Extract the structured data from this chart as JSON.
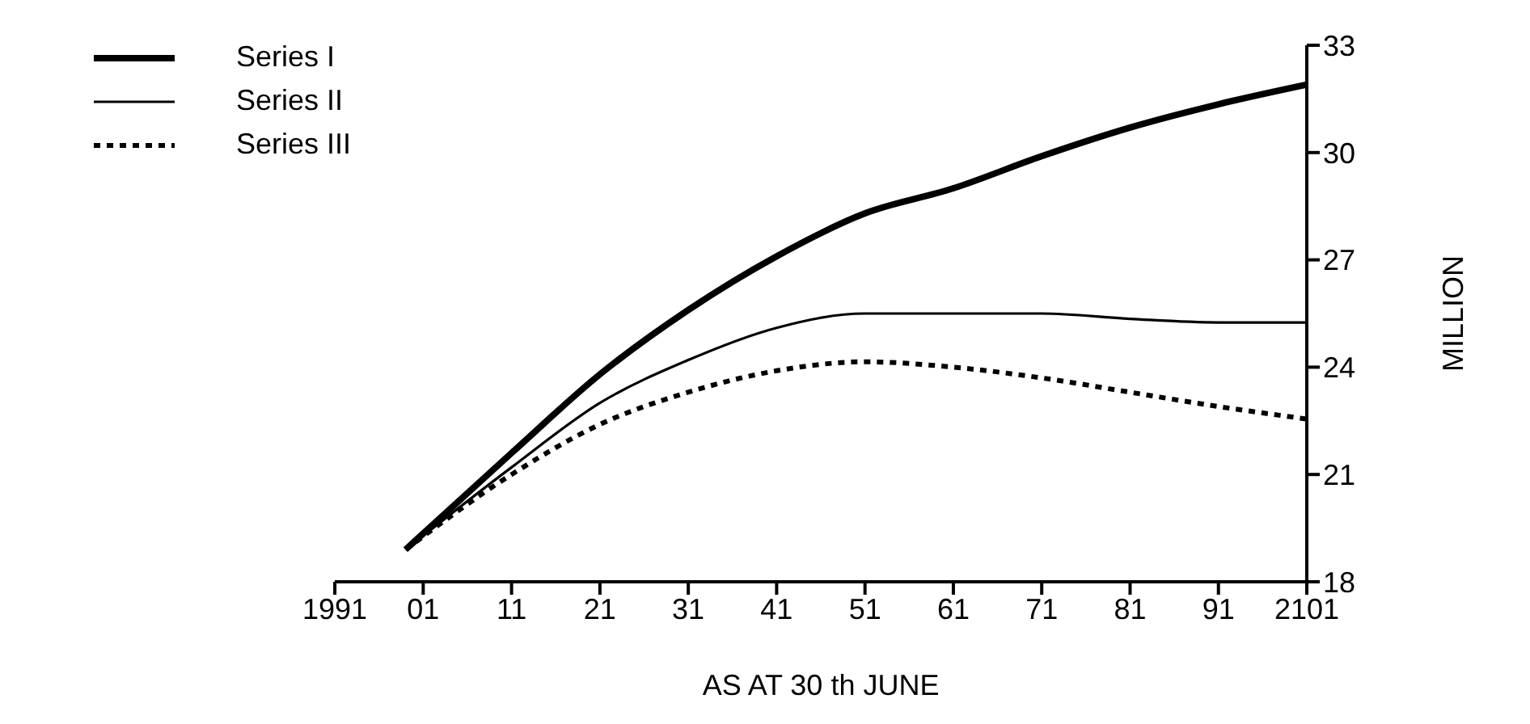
{
  "chart_data": {
    "type": "line",
    "xlabel": "AS AT 30 th JUNE",
    "ylabel": "MILLION",
    "xlim": [
      1991,
      2101
    ],
    "xticks": [
      1991,
      {
        "value": 2001,
        "label": "01"
      },
      {
        "value": 2011,
        "label": "11"
      },
      {
        "value": 2021,
        "label": "21"
      },
      {
        "value": 2031,
        "label": "31"
      },
      {
        "value": 2041,
        "label": "41"
      },
      {
        "value": 2051,
        "label": "51"
      },
      {
        "value": 2061,
        "label": "61"
      },
      {
        "value": 2071,
        "label": "71"
      },
      {
        "value": 2081,
        "label": "81"
      },
      {
        "value": 2091,
        "label": "91"
      },
      2101
    ],
    "ylim": [
      18,
      33
    ],
    "yticks": [
      18,
      21,
      24,
      27,
      30,
      33
    ],
    "x": [
      1999,
      2011,
      2021,
      2031,
      2041,
      2051,
      2061,
      2071,
      2081,
      2091,
      2101
    ],
    "series": [
      {
        "name": "Series I",
        "color": "#000000",
        "line_style": "solid",
        "values": [
          18.9,
          21.6,
          23.8,
          25.6,
          27.1,
          28.3,
          29.0,
          29.9,
          30.7,
          31.35,
          31.9
        ]
      },
      {
        "name": "Series II",
        "color": "#000000",
        "line_style": "solid",
        "values": [
          18.9,
          21.2,
          23.0,
          24.2,
          25.1,
          25.5,
          25.5,
          25.5,
          25.35,
          25.25,
          25.25
        ]
      },
      {
        "name": "Series III",
        "color": "#000000",
        "line_style": "dotted",
        "values": [
          18.9,
          21.0,
          22.4,
          23.3,
          23.9,
          24.15,
          24.0,
          23.7,
          23.3,
          22.9,
          22.55
        ]
      }
    ],
    "grid": false,
    "legend": "top left",
    "marker": "none"
  }
}
